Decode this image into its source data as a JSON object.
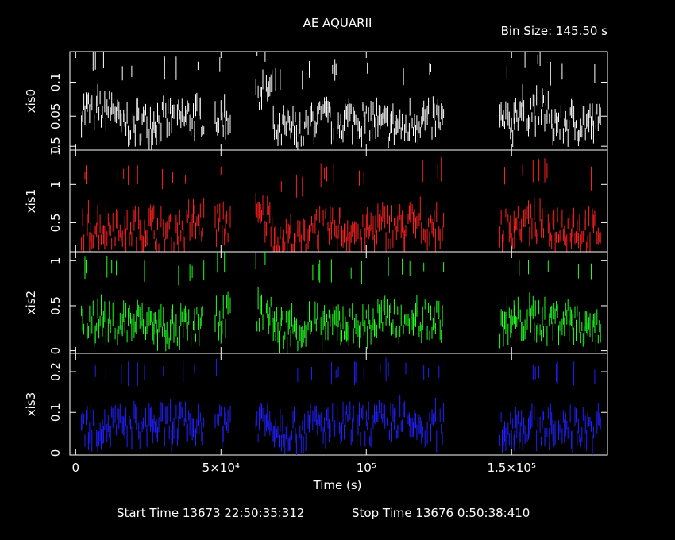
{
  "title": "AE AQUARII",
  "bin_size_label": "Bin Size: 145.50 s",
  "footer": {
    "start_label": "Start Time 13673 22:50:35:312",
    "stop_label": "Stop Time 13676  0:50:38:410"
  },
  "chart_data": {
    "type": "line",
    "xlabel": "Time (s)",
    "xlim": [
      -2000,
      183000
    ],
    "x_ticks": [
      {
        "value": 0,
        "label": "0"
      },
      {
        "value": 50000,
        "label": "5×10⁴"
      },
      {
        "value": 100000,
        "label": "10⁵"
      },
      {
        "value": 150000,
        "label": "1.5×10⁵"
      }
    ],
    "segments": [
      [
        2000,
        14500
      ],
      [
        14500,
        27000
      ],
      [
        27000,
        38500
      ],
      [
        38500,
        44500
      ],
      [
        48000,
        53500
      ],
      [
        62000,
        68000
      ],
      [
        68000,
        80000
      ],
      [
        80000,
        92000
      ],
      [
        92000,
        104000
      ],
      [
        104000,
        115000
      ],
      [
        115000,
        127000
      ],
      [
        146000,
        151000
      ],
      [
        151000,
        163000
      ],
      [
        163000,
        173000
      ],
      [
        173000,
        181000
      ]
    ],
    "series": [
      {
        "name": "xis0",
        "color": "#ffffff",
        "ylim": [
          0,
          0.145
        ],
        "y_ticks": [
          {
            "value": 0,
            "label": "0"
          },
          {
            "value": 0.05,
            "label": "0.05"
          },
          {
            "value": 0.1,
            "label": "0.1"
          }
        ],
        "values": [
          0.06,
          0.04,
          0.045,
          0.05,
          0.05,
          0.09,
          0.03,
          0.045,
          0.045,
          0.035,
          0.045,
          0.04,
          0.06,
          0.04,
          0.04
        ]
      },
      {
        "name": "xis1",
        "color": "#ff2020",
        "ylim": [
          0.12,
          1.45
        ],
        "y_ticks": [
          {
            "value": 0.5,
            "label": "0.5"
          },
          {
            "value": 1,
            "label": "1"
          },
          {
            "value": 1.5,
            "label": "1.5"
          }
        ],
        "values": [
          0.45,
          0.45,
          0.4,
          0.5,
          0.5,
          0.55,
          0.3,
          0.45,
          0.4,
          0.45,
          0.5,
          0.45,
          0.5,
          0.45,
          0.4
        ]
      },
      {
        "name": "xis2",
        "color": "#20ff20",
        "ylim": [
          -0.03,
          1.1
        ],
        "y_ticks": [
          {
            "value": 0,
            "label": "0"
          },
          {
            "value": 0.5,
            "label": "0.5"
          },
          {
            "value": 1,
            "label": "1"
          }
        ],
        "values": [
          0.35,
          0.32,
          0.25,
          0.3,
          0.4,
          0.45,
          0.25,
          0.3,
          0.3,
          0.35,
          0.35,
          0.3,
          0.35,
          0.35,
          0.3
        ]
      },
      {
        "name": "xis3",
        "color": "#2020ff",
        "ylim": [
          -0.005,
          0.245
        ],
        "y_ticks": [
          {
            "value": 0,
            "label": "0"
          },
          {
            "value": 0.1,
            "label": "0.1"
          },
          {
            "value": 0.2,
            "label": "0.2"
          }
        ],
        "values": [
          0.07,
          0.07,
          0.07,
          0.08,
          0.08,
          0.08,
          0.06,
          0.07,
          0.07,
          0.08,
          0.07,
          0.06,
          0.07,
          0.07,
          0.06
        ]
      }
    ]
  }
}
